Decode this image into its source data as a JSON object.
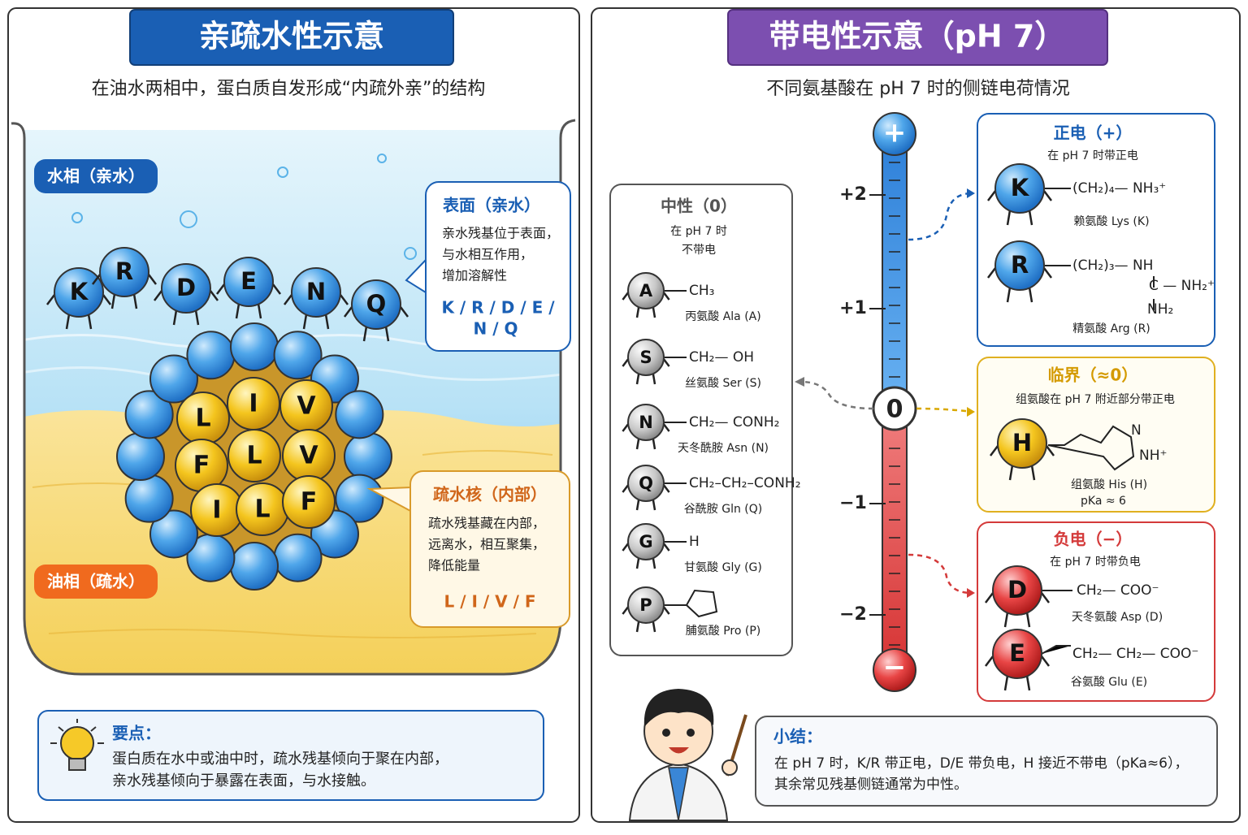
{
  "left": {
    "title": "亲疏水性示意",
    "subtitle": "在油水两相中，蛋白质自发形成“内疏外亲”的结构",
    "water_label": "水相（亲水）",
    "oil_label": "油相（疏水）",
    "surface_residues": [
      "K",
      "R",
      "D",
      "E",
      "N",
      "Q"
    ],
    "core_residues": [
      "L",
      "I",
      "V",
      "F",
      "L",
      "V",
      "I",
      "L",
      "F"
    ],
    "surface_callout": {
      "title": "表面（亲水）",
      "lines": [
        "亲水残基位于表面，",
        "与水相互作用，",
        "增加溶解性"
      ],
      "residues": [
        "K / R / D / E /",
        "N / Q"
      ]
    },
    "core_callout": {
      "title": "疏水核（内部）",
      "lines": [
        "疏水残基藏在内部，",
        "远离水，相互聚集，",
        "降低能量"
      ],
      "residues": "L / I / V / F"
    },
    "key_points": {
      "title": "要点：",
      "lines": [
        "蛋白质在水中或油中时，疏水残基倾向于聚在内部，",
        "亲水残基倾向于暴露在表面，与水接触。"
      ]
    }
  },
  "right": {
    "title": "带电性示意（pH 7）",
    "subtitle": "不同氨基酸在 pH 7 时的侧链电荷情况",
    "scale": {
      "plus": "+",
      "zero": "0",
      "minus": "−",
      "ticks": [
        "+2",
        "+1",
        "−1",
        "−2"
      ]
    },
    "neutral": {
      "title": "中性（0）",
      "subtitle": [
        "在 pH 7 时",
        "不带电"
      ],
      "items": [
        {
          "letter": "A",
          "formula": "CH₃",
          "name": "丙氨酸 Ala (A)"
        },
        {
          "letter": "S",
          "formula": "CH₂— OH",
          "name": "丝氨酸 Ser (S)"
        },
        {
          "letter": "N",
          "formula": "CH₂— CONH₂",
          "name": "天冬酰胺 Asn (N)"
        },
        {
          "letter": "Q",
          "formula": "CH₂–CH₂–CONH₂",
          "name": "谷酰胺 Gln (Q)"
        },
        {
          "letter": "G",
          "formula": "H",
          "name": "甘氨酸 Gly (G)"
        },
        {
          "letter": "P",
          "formula": "",
          "name": "脯氨酸 Pro (P)"
        }
      ]
    },
    "positive": {
      "title": "正电（+）",
      "subtitle": "在 pH 7 时带正电",
      "items": [
        {
          "letter": "K",
          "formula": [
            "(CH₂)₄— NH₃⁺"
          ],
          "name": "赖氨酸 Lys (K)"
        },
        {
          "letter": "R",
          "formula": [
            "(CH₂)₃— NH",
            "C — NH₂⁺",
            "NH₂"
          ],
          "name": "精氨酸 Arg (R)"
        }
      ]
    },
    "critical": {
      "title": "临界（≈0）",
      "subtitle": "组氨酸在 pH 7 附近部分带正电",
      "item": {
        "letter": "H",
        "formula": [
          "N",
          "NH⁺"
        ],
        "name": "组氨酸 His (H)",
        "pka": "pKa ≈ 6"
      }
    },
    "negative": {
      "title": "负电（−）",
      "subtitle": "在 pH 7 时带负电",
      "items": [
        {
          "letter": "D",
          "formula": "CH₂— COO⁻",
          "name": "天冬氨酸 Asp (D)"
        },
        {
          "letter": "E",
          "formula": "CH₂— CH₂— COO⁻",
          "name": "谷氨酸 Glu (E)"
        }
      ]
    },
    "summary": {
      "title": "小结：",
      "lines": [
        "在 pH 7 时，K/R 带正电，D/E 带负电，H 接近不带电（pKa≈6），",
        "其余常见残基侧链通常为中性。"
      ]
    }
  }
}
